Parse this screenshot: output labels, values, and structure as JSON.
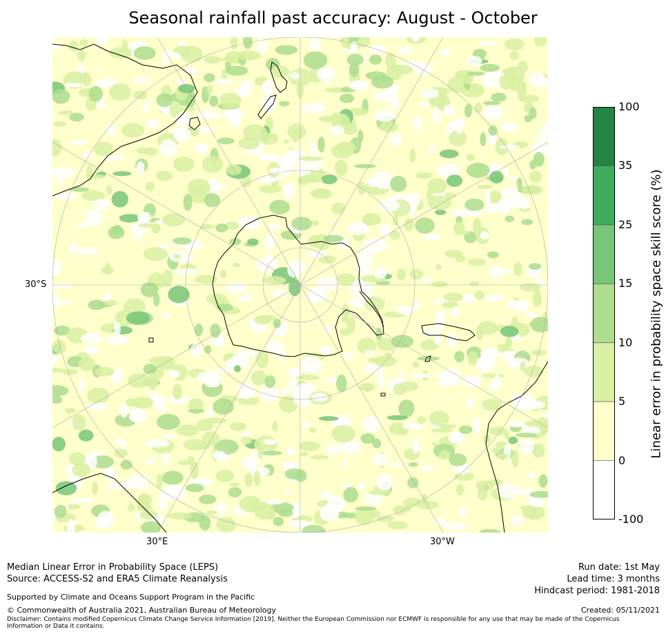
{
  "title": "Seasonal rainfall past accuracy: August - October",
  "map": {
    "projection": "south-polar-stereographic",
    "lat_label": "30°S",
    "lon_labels": [
      "30°E",
      "30°W"
    ],
    "background_colors": [
      "#ffffff",
      "#ffffcc",
      "#d9f0a3",
      "#addd8e",
      "#78c679",
      "#41ab5d",
      "#238443"
    ]
  },
  "colorbar": {
    "label": "Linear error in probability space skill score (%)",
    "ticks": [
      "100",
      "35",
      "25",
      "15",
      "10",
      "5",
      "0",
      "-100"
    ],
    "colors": [
      "#238443",
      "#41ab5d",
      "#78c679",
      "#addd8e",
      "#d9f0a3",
      "#ffffcc",
      "#ffffff"
    ]
  },
  "footer": {
    "line1": "Median Linear Error in Probability Space (LEPS)",
    "line2": "Source: ACCESS-S2 and ERA5 Climate Reanalysis",
    "support": "Supported by Climate and Oceans Support Program in the Pacific",
    "copyright": "© Commonwealth of Australia 2021, Australian Bureau of Meteorology",
    "disclaimer1": "Disclaimer: Contains modified Copernicus Climate Change Service Information [2019]. Neither the European Commission nor ECMWF is responsible for any use that may be made of the Copernicus",
    "disclaimer2": "Information or Data it contains.",
    "run_date": "Run date: 1st May",
    "lead_time": "Lead time: 3 months",
    "hindcast": "Hindcast period: 1981-2018",
    "created": "Created: 05/11/2021"
  }
}
